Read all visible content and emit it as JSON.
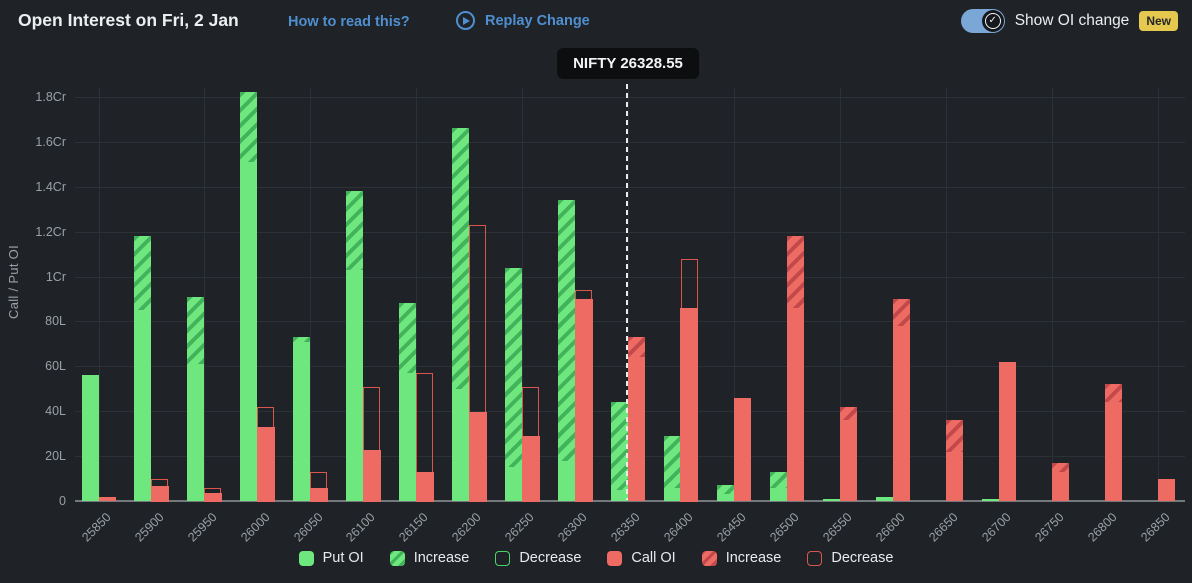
{
  "header": {
    "title": "Open Interest on Fri, 2 Jan",
    "how_to_read_label": "How to read this?",
    "replay_label": "Replay Change",
    "toggle_label": "Show OI change",
    "toggle_state": "on",
    "new_badge": "New"
  },
  "price_marker": {
    "label": "NIFTY 26328.55"
  },
  "colors": {
    "background": "#1f2327",
    "put_green": "#6ee87e",
    "put_green_dark": "#42b35b",
    "put_outline": "#4cd368",
    "call_red": "#ee6b64",
    "call_red_dark": "#c2484a",
    "call_outline": "#d9564f",
    "link_blue": "#4f8fd0",
    "toggle_blue": "#7ba7d7",
    "badge_yellow": "#e5c84e",
    "grid": "#2b3137",
    "axis_text": "#9aa0a5"
  },
  "chart_data": {
    "type": "bar",
    "title": "Open Interest on Fri, 2 Jan",
    "ylabel": "Call / Put OI",
    "unit_note": "values in lakhs; 1Cr = 100L",
    "ylim_lakh": [
      0,
      190
    ],
    "ytick_step_lakh": 20,
    "ytick_labels": [
      "0",
      "20L",
      "40L",
      "60L",
      "80L",
      "1Cr",
      "1.2Cr",
      "1.4Cr",
      "1.6Cr",
      "1.8Cr"
    ],
    "grid": "on",
    "legend_position": "bottom",
    "categories": [
      "25850",
      "25900",
      "25950",
      "26000",
      "26050",
      "26100",
      "26150",
      "26200",
      "26250",
      "26300",
      "26350",
      "26400",
      "26450",
      "26500",
      "26550",
      "26600",
      "26650",
      "26700",
      "26750",
      "26800",
      "26850"
    ],
    "series": [
      {
        "name": "Put OI (L)",
        "values": [
          56,
          118,
          91,
          182,
          73,
          138,
          88,
          166,
          104,
          134,
          44,
          29,
          7,
          13,
          1,
          2,
          0,
          1,
          0,
          0,
          0
        ]
      },
      {
        "name": "Put OI change (L)",
        "values": [
          0,
          33,
          30,
          31,
          2,
          35,
          31,
          116,
          89,
          116,
          39,
          23,
          4,
          7,
          0,
          0,
          0,
          0,
          0,
          0,
          0
        ]
      },
      {
        "name": "Call OI (L)",
        "values": [
          2,
          7,
          4,
          33,
          6,
          23,
          13,
          40,
          29,
          90,
          73,
          86,
          46,
          118,
          42,
          90,
          36,
          62,
          17,
          52,
          10
        ]
      },
      {
        "name": "Call OI change (L)",
        "values": [
          0,
          -3,
          -2,
          -9,
          -7,
          -28,
          -44,
          -83,
          -22,
          -4,
          9,
          -22,
          0,
          32,
          6,
          12,
          14,
          0,
          4,
          8,
          0
        ]
      }
    ],
    "price_line": {
      "label": "NIFTY 26328.55",
      "position": "between 26300 and 26350 strikes"
    },
    "legend": [
      {
        "label": "Put OI",
        "swatch": "put-solid"
      },
      {
        "label": "Increase",
        "swatch": "put-hatch"
      },
      {
        "label": "Decrease",
        "swatch": "put-outline"
      },
      {
        "label": "Call OI",
        "swatch": "call-solid"
      },
      {
        "label": "Increase",
        "swatch": "call-hatch"
      },
      {
        "label": "Decrease",
        "swatch": "call-outline"
      }
    ]
  }
}
